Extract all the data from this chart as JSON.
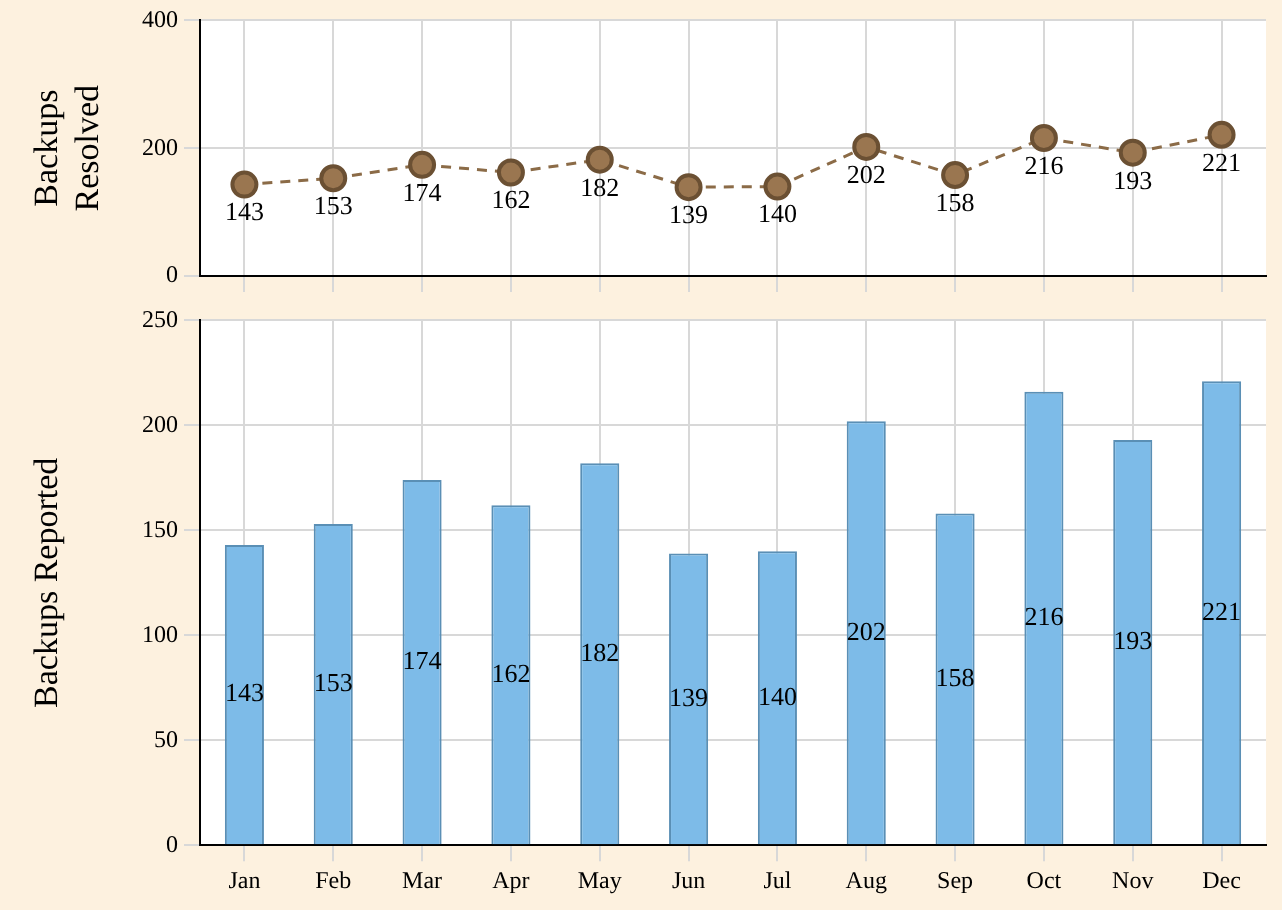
{
  "chart_data": [
    {
      "type": "line",
      "ylabel": "Backups Resolved",
      "categories": [
        null,
        null,
        null,
        null,
        null,
        null,
        null,
        null,
        null,
        null,
        null,
        null
      ],
      "series": [
        {
          "color": "#8b6b47",
          "values": [
            143,
            153,
            174,
            162,
            182,
            139,
            140,
            202,
            158,
            216,
            193,
            221
          ]
        }
      ],
      "ylim": [
        0,
        400
      ],
      "yticks": [
        0,
        200,
        400
      ],
      "grid": true,
      "marker": "circle",
      "line_style": "dashed",
      "data_labels": true,
      "tick_labels": "y"
    },
    {
      "type": "bar",
      "ylabel": "Backups Reported",
      "categories": [
        "Jan",
        "Feb",
        "Mar",
        "Apr",
        "May",
        "Jun",
        "Jul",
        "Aug",
        "Sep",
        "Oct",
        "Nov",
        "Dec"
      ],
      "series": [
        {
          "color": "#7dbbe8",
          "values": [
            143,
            153,
            174,
            162,
            182,
            139,
            140,
            202,
            158,
            216,
            193,
            221
          ]
        }
      ],
      "ylim": [
        0,
        250
      ],
      "yticks": [
        0,
        50,
        100,
        150,
        200,
        250
      ],
      "grid": true,
      "data_labels": true
    }
  ]
}
